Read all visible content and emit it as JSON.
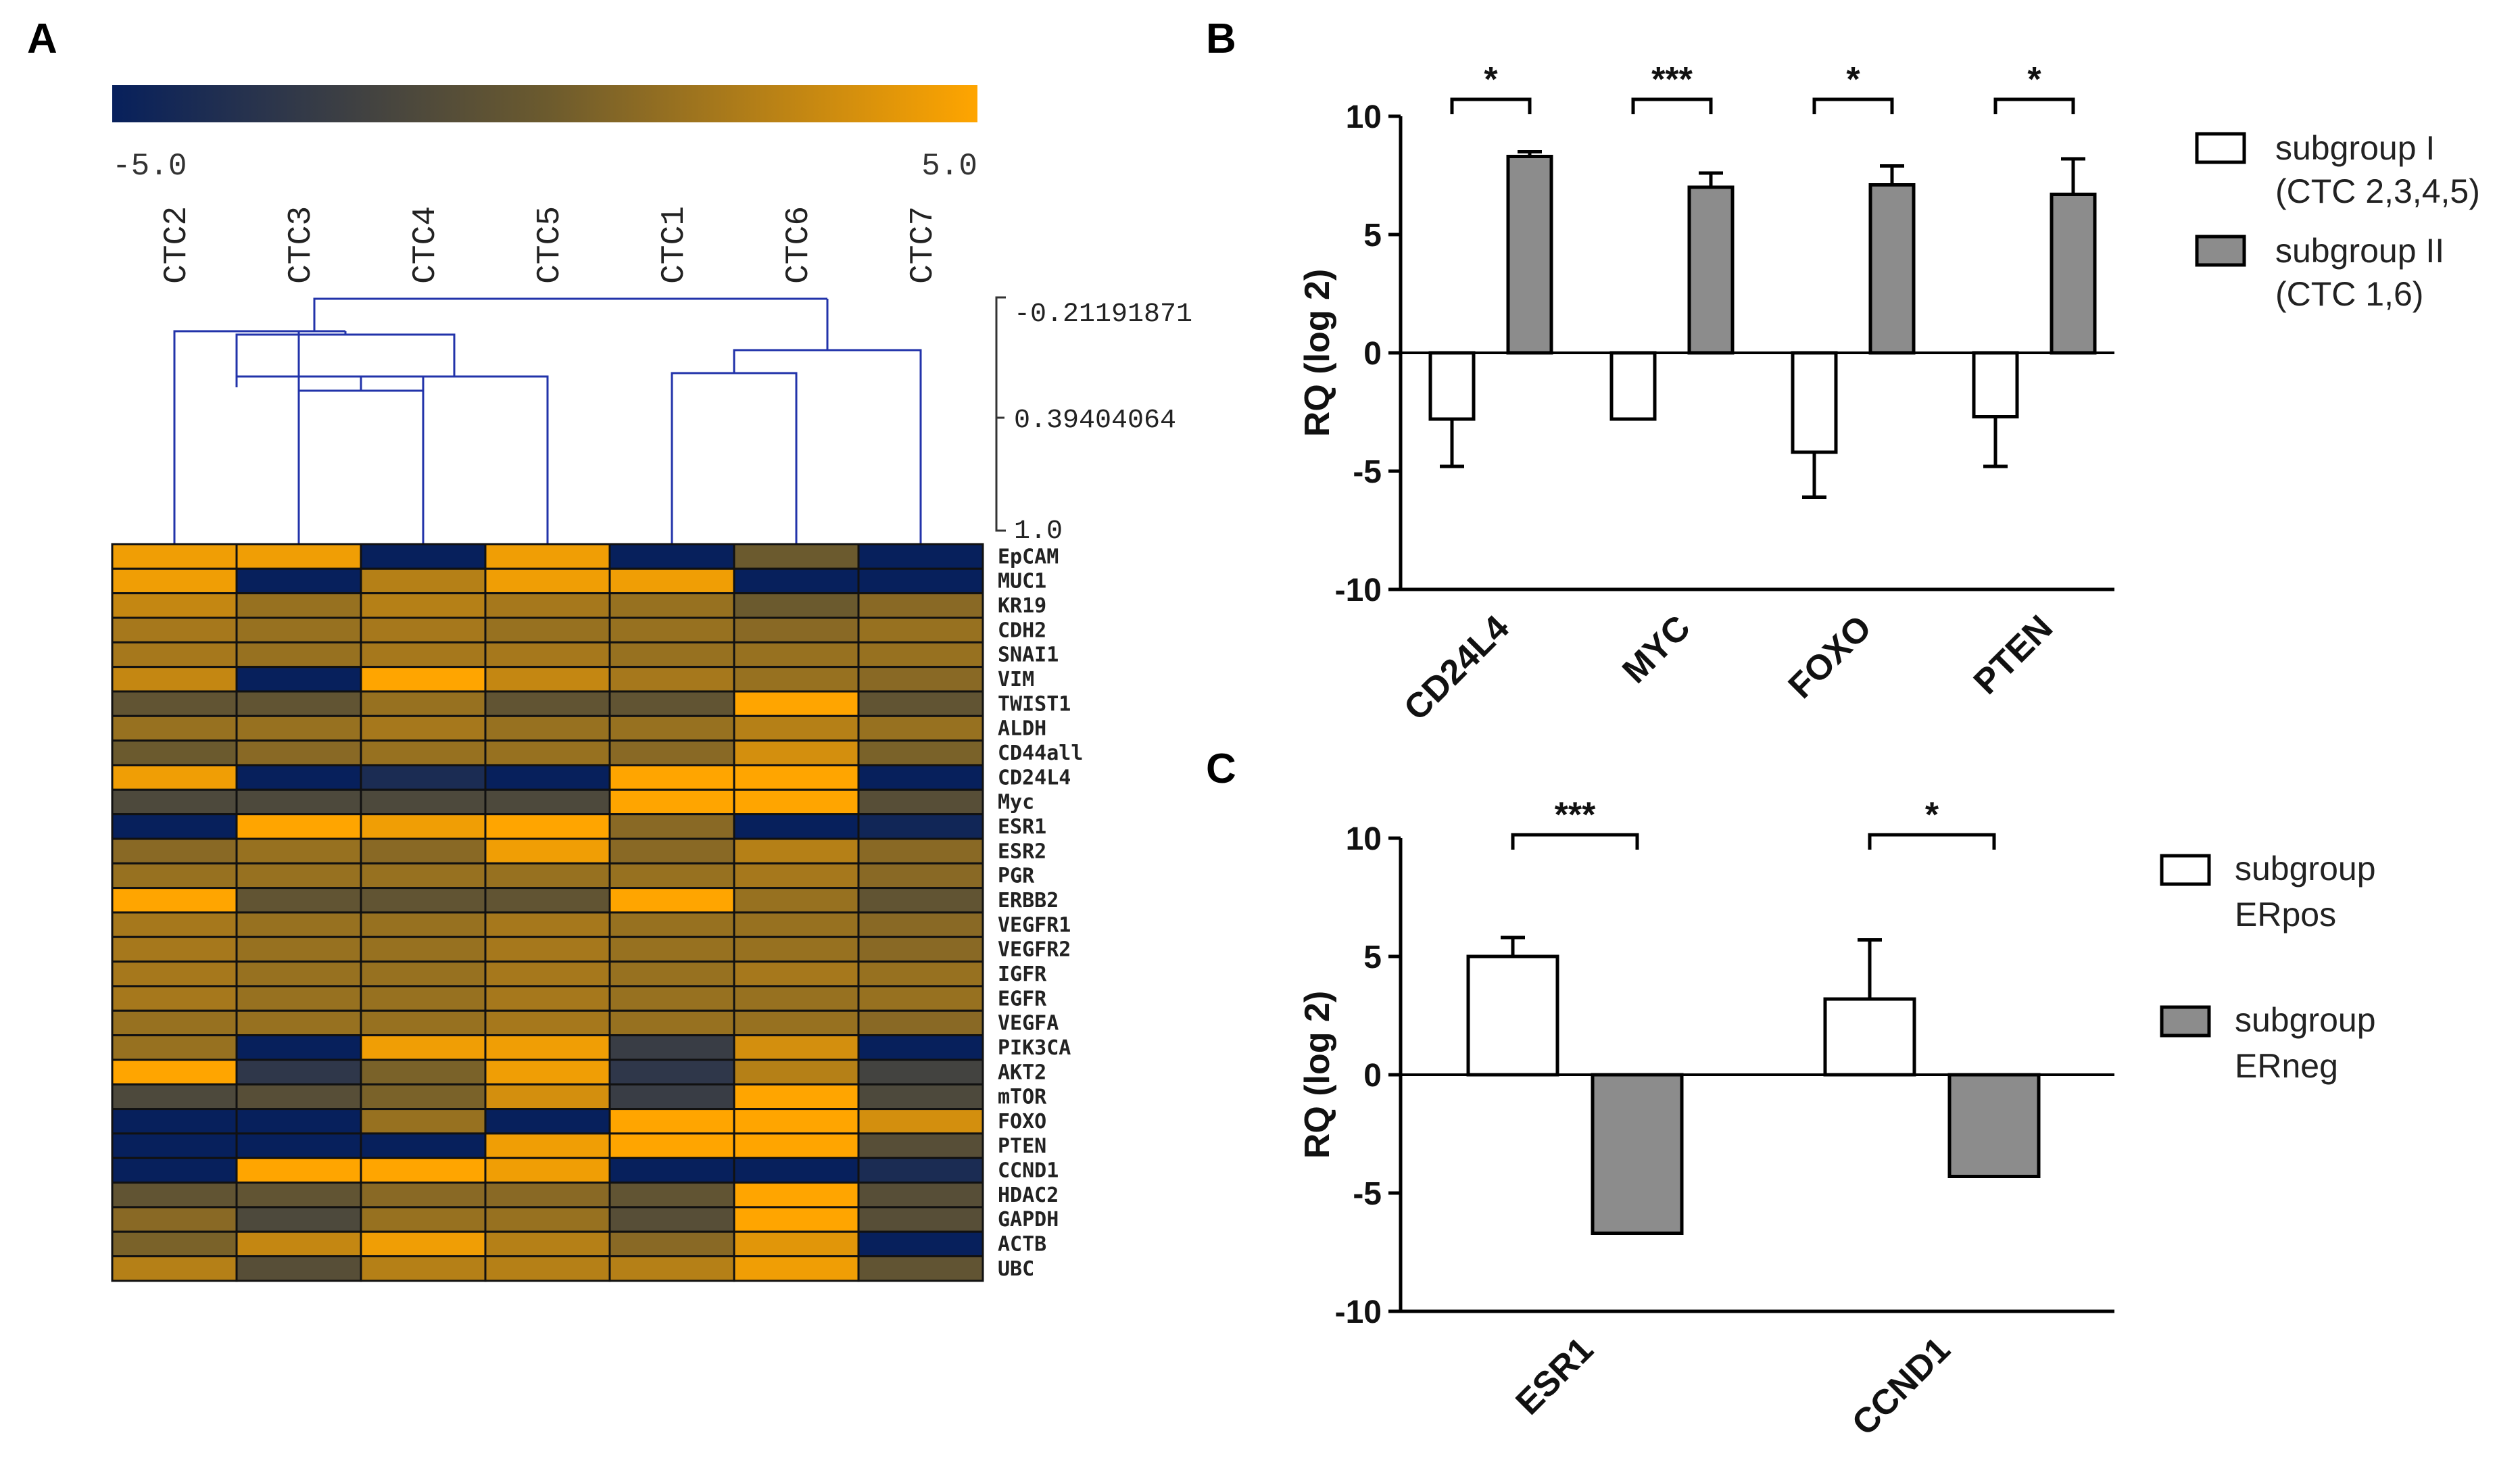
{
  "panels": {
    "A": {
      "label": "A",
      "colorbar": {
        "min_label": "-5.0",
        "max_label": "5.0",
        "min": -5.0,
        "max": 5.0,
        "low_color": "#07205c",
        "mid_color": "#6b5a2e",
        "high_color": "#ffa500"
      },
      "dendrogram_scale": [
        "-0.21191871",
        "0.39404064",
        "1.0"
      ],
      "columns": [
        "CTC2",
        "CTC3",
        "CTC4",
        "CTC5",
        "CTC1",
        "CTC6",
        "CTC7"
      ]
    },
    "B": {
      "label": "B",
      "legend": [
        {
          "line1": "subgroup I",
          "line2": "(CTC 2,3,4,5)",
          "fill": "#ffffff"
        },
        {
          "line1": "subgroup II",
          "line2": "(CTC 1,6)",
          "fill": "#8c8c8c"
        }
      ]
    },
    "C": {
      "label": "C",
      "legend": [
        {
          "line1": "subgroup",
          "line2": "ERpos",
          "fill": "#ffffff"
        },
        {
          "line1": "subgroup",
          "line2": "ERneg",
          "fill": "#8c8c8c"
        }
      ]
    }
  },
  "chart_data": [
    {
      "type": "heatmap",
      "title": "",
      "columns": [
        "CTC2",
        "CTC3",
        "CTC4",
        "CTC5",
        "CTC1",
        "CTC6",
        "CTC7"
      ],
      "rows": [
        "EpCAM",
        "MUC1",
        "KR19",
        "CDH2",
        "SNAI1",
        "VIM",
        "TWIST1",
        "ALDH",
        "CD44all",
        "CD24L4",
        "Myc",
        "ESR1",
        "ESR2",
        "PGR",
        "ERBB2",
        "VEGFR1",
        "VEGFR2",
        "IGFR",
        "EGFR",
        "VEGFA",
        "PIK3CA",
        "AKT2",
        "mTOR",
        "FOXO",
        "PTEN",
        "CCND1",
        "HDAC2",
        "GAPDH",
        "ACTB",
        "UBC"
      ],
      "values": [
        [
          4.5,
          4.5,
          -5.0,
          4.5,
          -5.0,
          0.0,
          -5.0
        ],
        [
          4.5,
          -5.0,
          2.5,
          4.5,
          4.5,
          -5.0,
          -5.0
        ],
        [
          3.0,
          1.5,
          2.5,
          2.0,
          1.5,
          0.0,
          1.0
        ],
        [
          2.0,
          1.5,
          2.0,
          1.5,
          1.5,
          1.0,
          1.5
        ],
        [
          2.0,
          1.5,
          2.0,
          2.0,
          1.5,
          1.5,
          1.5
        ],
        [
          3.0,
          -5.0,
          5.0,
          3.0,
          2.0,
          1.5,
          1.0
        ],
        [
          -0.5,
          -0.5,
          1.5,
          -0.5,
          -0.5,
          5.0,
          -0.5
        ],
        [
          1.5,
          1.5,
          2.0,
          1.5,
          1.5,
          2.5,
          1.5
        ],
        [
          0.0,
          1.0,
          1.5,
          1.5,
          1.0,
          3.5,
          0.5
        ],
        [
          4.5,
          -5.0,
          -4.0,
          -5.0,
          5.0,
          5.0,
          -5.0
        ],
        [
          -1.5,
          -1.5,
          -1.5,
          -1.5,
          5.0,
          5.0,
          -1.0
        ],
        [
          -5.0,
          5.0,
          4.5,
          5.0,
          1.0,
          -5.0,
          -4.5
        ],
        [
          1.0,
          1.5,
          1.0,
          4.5,
          1.0,
          2.5,
          1.0
        ],
        [
          1.5,
          1.5,
          1.5,
          1.5,
          1.5,
          2.0,
          1.0
        ],
        [
          5.0,
          -0.5,
          -0.5,
          -0.5,
          5.0,
          1.5,
          -0.5
        ],
        [
          2.0,
          1.5,
          1.5,
          2.0,
          1.5,
          1.5,
          1.0
        ],
        [
          2.0,
          1.5,
          1.5,
          2.0,
          1.5,
          1.5,
          1.0
        ],
        [
          2.0,
          1.5,
          1.5,
          2.0,
          1.5,
          2.0,
          1.5
        ],
        [
          2.0,
          1.5,
          1.5,
          2.0,
          1.5,
          1.5,
          1.5
        ],
        [
          1.5,
          1.5,
          1.5,
          2.0,
          1.5,
          1.5,
          1.0
        ],
        [
          1.5,
          -5.0,
          4.5,
          4.5,
          -2.5,
          3.5,
          -5.0
        ],
        [
          5.0,
          -3.0,
          0.5,
          4.5,
          -3.0,
          2.5,
          -2.0
        ],
        [
          -1.5,
          -1.0,
          0.5,
          3.5,
          -2.5,
          5.0,
          -1.5
        ],
        [
          -5.0,
          -5.0,
          1.5,
          -5.0,
          5.0,
          5.0,
          3.5
        ],
        [
          -5.0,
          -5.0,
          -5.0,
          4.5,
          5.0,
          5.0,
          -1.0
        ],
        [
          -5.0,
          5.0,
          5.0,
          4.5,
          -5.0,
          -5.0,
          -4.0
        ],
        [
          -0.5,
          -0.5,
          1.0,
          1.0,
          -0.5,
          5.0,
          -1.0
        ],
        [
          1.0,
          -1.5,
          1.5,
          1.5,
          -1.0,
          5.0,
          -1.0
        ],
        [
          0.5,
          3.0,
          4.5,
          2.5,
          1.0,
          4.0,
          -5.0
        ],
        [
          2.5,
          -1.0,
          2.5,
          2.5,
          2.5,
          4.5,
          -0.5
        ]
      ],
      "colorscale": {
        "min": -5.0,
        "max": 5.0
      }
    },
    {
      "type": "bar",
      "title": "",
      "xlabel": "",
      "ylabel": "RQ (log 2)",
      "ylim": [
        -10,
        10
      ],
      "yticks": [
        "10",
        "5",
        "0",
        "-5",
        "-10"
      ],
      "categories": [
        "CD24L4",
        "MYC",
        "FOXO",
        "PTEN"
      ],
      "series": [
        {
          "name": "subgroup I (CTC 2,3,4,5)",
          "values": [
            -2.8,
            -2.8,
            -4.2,
            -2.7
          ],
          "errors": [
            2.0,
            0,
            1.9,
            2.1
          ]
        },
        {
          "name": "subgroup II (CTC 1,6)",
          "values": [
            8.3,
            7.0,
            7.1,
            6.7
          ],
          "errors": [
            0.2,
            0.6,
            0.8,
            1.5
          ]
        }
      ],
      "significance": [
        "*",
        "***",
        "*",
        "*"
      ]
    },
    {
      "type": "bar",
      "title": "",
      "xlabel": "",
      "ylabel": "RQ (log 2)",
      "ylim": [
        -10,
        10
      ],
      "yticks": [
        "10",
        "5",
        "0",
        "-5",
        "-10"
      ],
      "categories": [
        "ESR1",
        "CCND1"
      ],
      "series": [
        {
          "name": "subgroup ERpos",
          "values": [
            5.0,
            3.2
          ],
          "errors": [
            0.8,
            2.5
          ]
        },
        {
          "name": "subgroup ERneg",
          "values": [
            -6.7,
            -4.3
          ],
          "errors": [
            0,
            0
          ]
        }
      ],
      "significance": [
        "***",
        "*"
      ]
    }
  ]
}
